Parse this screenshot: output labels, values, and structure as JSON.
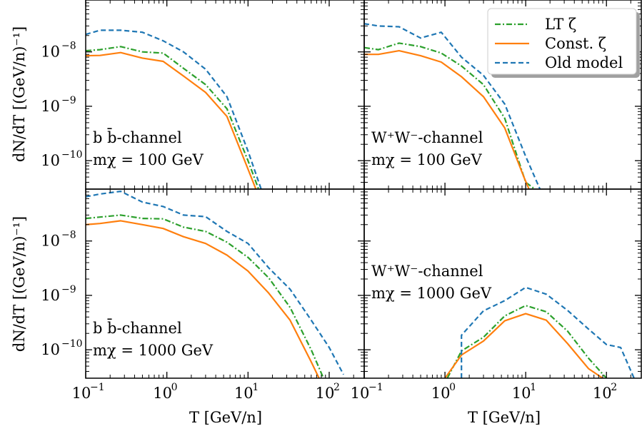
{
  "chart_data": {
    "type": "line",
    "layout": "2x2 panels, shared log x-axis (T) and log y-axis (dN/dT)",
    "xlabel": "T [GeV/n]",
    "ylabel": "dN/dT [(GeV/n)⁻¹]",
    "xlim": [
      0.1,
      270
    ],
    "ylim": [
      3e-11,
      9e-08
    ],
    "xscale": "log",
    "yscale": "log",
    "xticks": [
      {
        "value": 0.1,
        "label": "10",
        "exp": "−1"
      },
      {
        "value": 1,
        "label": "10",
        "exp": "0"
      },
      {
        "value": 10,
        "label": "10",
        "exp": "1"
      },
      {
        "value": 100,
        "label": "10",
        "exp": "2"
      }
    ],
    "yticks": [
      {
        "value": 1e-08,
        "label": "10",
        "exp": "−8"
      },
      {
        "value": 1e-09,
        "label": "10",
        "exp": "−9"
      },
      {
        "value": 1e-10,
        "label": "10",
        "exp": "−10"
      }
    ],
    "legend": {
      "placement": "top-right",
      "entries": [
        {
          "label": "LT ζ",
          "color": "#2ca02c",
          "dash": "dashdot"
        },
        {
          "label": "Const. ζ",
          "color": "#ff7f0e",
          "dash": "solid"
        },
        {
          "label": "Old model",
          "color": "#1f77b4",
          "dash": "dashed"
        }
      ]
    },
    "panels": [
      {
        "id": "top-left",
        "annotation_line1": "b b̄-channel",
        "annotation_line2": "mχ = 100 GeV",
        "series": [
          {
            "name": "LT ζ",
            "x": [
              0.1,
              0.15,
              0.27,
              0.5,
              0.9,
              1.6,
              3.0,
              5.5,
              10,
              13.5
            ],
            "y": [
              1.05e-08,
              1.1e-08,
              1.25e-08,
              1e-08,
              9.5e-09,
              5e-09,
              2.5e-09,
              9e-10,
              1e-10,
              3e-11
            ]
          },
          {
            "name": "Const. ζ",
            "x": [
              0.1,
              0.15,
              0.27,
              0.5,
              0.9,
              1.6,
              3.0,
              5.5,
              10,
              12.5
            ],
            "y": [
              8.5e-09,
              8.6e-09,
              9.7e-09,
              7.7e-09,
              6.7e-09,
              3.6e-09,
              1.8e-09,
              6.5e-10,
              7e-11,
              3e-11
            ]
          },
          {
            "name": "Old model",
            "x": [
              0.1,
              0.15,
              0.27,
              0.5,
              0.9,
              1.6,
              3.0,
              5.5,
              10,
              14.5
            ],
            "y": [
              2.1e-08,
              2.5e-08,
              2.5e-08,
              2.3e-08,
              1.6e-08,
              1e-08,
              4.8e-09,
              1.5e-09,
              1.5e-10,
              3e-11
            ]
          }
        ]
      },
      {
        "id": "top-right",
        "annotation_line1": "W⁺W⁻-channel",
        "annotation_line2": "mχ = 100 GeV",
        "series": [
          {
            "name": "LT ζ",
            "x": [
              0.1,
              0.15,
              0.27,
              0.5,
              0.9,
              1.6,
              3.0,
              5.5,
              10,
              13
            ],
            "y": [
              1.2e-08,
              1.1e-08,
              1.45e-08,
              1.25e-08,
              9.5e-09,
              5.5e-09,
              2.5e-09,
              6e-10,
              4e-11,
              3e-11
            ]
          },
          {
            "name": "Const. ζ",
            "x": [
              0.1,
              0.15,
              0.27,
              0.5,
              0.9,
              1.6,
              3.0,
              5.5,
              9.5,
              11
            ],
            "y": [
              9e-09,
              9e-09,
              1.05e-08,
              8.5e-09,
              6.5e-09,
              3.5e-09,
              1.5e-09,
              4e-10,
              5e-11,
              3e-11
            ]
          },
          {
            "name": "Old model",
            "x": [
              0.1,
              0.15,
              0.27,
              0.5,
              0.9,
              1.6,
              3.0,
              5.5,
              10,
              15
            ],
            "y": [
              3.3e-08,
              3e-08,
              2.9e-08,
              1.8e-08,
              2.3e-08,
              8e-09,
              3.7e-09,
              1.1e-09,
              1.2e-10,
              3e-11
            ]
          }
        ]
      },
      {
        "id": "bottom-left",
        "annotation_line1": "b b̄-channel",
        "annotation_line2": "mχ = 1000 GeV",
        "series": [
          {
            "name": "LT ζ",
            "x": [
              0.1,
              0.15,
              0.27,
              0.5,
              0.9,
              1.6,
              3.0,
              5.5,
              10,
              18,
              33,
              60,
              85
            ],
            "y": [
              2.6e-08,
              2.75e-08,
              3e-08,
              2.6e-08,
              2.55e-08,
              1.8e-08,
              1.5e-08,
              9.5e-09,
              5e-09,
              2.1e-09,
              6e-10,
              1e-10,
              3e-11
            ]
          },
          {
            "name": "Const. ζ",
            "x": [
              0.1,
              0.15,
              0.27,
              0.5,
              0.9,
              1.6,
              3.0,
              5.5,
              10,
              18,
              33,
              60,
              75
            ],
            "y": [
              2e-08,
              2.1e-08,
              2.35e-08,
              2e-08,
              1.7e-08,
              1.2e-08,
              9e-09,
              5.5e-09,
              2.8e-09,
              1.1e-09,
              3.5e-10,
              6e-11,
              3e-11
            ]
          },
          {
            "name": "Old model",
            "x": [
              0.1,
              0.15,
              0.27,
              0.5,
              0.9,
              1.6,
              3.0,
              5.5,
              10,
              18,
              33,
              60,
              100,
              150
            ],
            "y": [
              6.5e-08,
              7.3e-08,
              8.2e-08,
              5.2e-08,
              4.3e-08,
              3e-08,
              2.8e-08,
              1.5e-08,
              9e-09,
              3.2e-09,
              1.3e-09,
              3.5e-10,
              1.1e-10,
              3.5e-11
            ]
          }
        ]
      },
      {
        "id": "bottom-right",
        "annotation_line1": "W⁺W⁻-channel",
        "annotation_line2": "mχ = 1000 GeV",
        "series": [
          {
            "name": "LT ζ",
            "x": [
              1.07,
              1.6,
              3.0,
              5.5,
              10,
              18,
              33,
              60,
              100
            ],
            "y": [
              3e-11,
              9.5e-11,
              1.7e-10,
              4.2e-10,
              6.5e-10,
              5e-10,
              2.2e-10,
              7e-11,
              3e-11
            ]
          },
          {
            "name": "Const. ζ",
            "x": [
              1.0,
              1.6,
              3.0,
              5.5,
              10,
              18,
              33,
              60,
              90
            ],
            "y": [
              3e-11,
              8e-11,
              1.45e-10,
              3.4e-10,
              4.6e-10,
              3.5e-10,
              1.3e-10,
              4.5e-11,
              3e-11
            ]
          },
          {
            "name": "Old model",
            "x": [
              1.6,
              1.6,
              3.0,
              5.5,
              10,
              18,
              33,
              60,
              100,
              150,
              220
            ],
            "y": [
              3e-11,
              1.85e-10,
              5.2e-10,
              8e-10,
              1.4e-09,
              1.05e-09,
              5.3e-10,
              2.4e-10,
              1.25e-10,
              1.1e-10,
              3e-11
            ]
          }
        ]
      }
    ]
  }
}
